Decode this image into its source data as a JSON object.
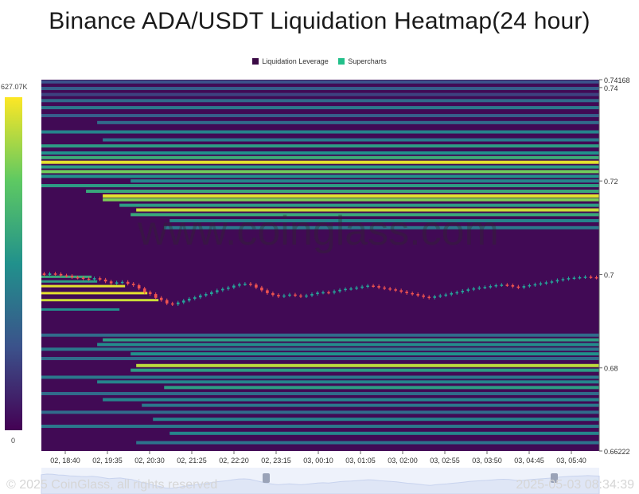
{
  "title": "Binance ADA/USDT Liquidation Heatmap(24 hour)",
  "legend": [
    {
      "label": "Liquidation Leverage",
      "color": "#3b0a45"
    },
    {
      "label": "Supercharts",
      "color": "#22c08a"
    }
  ],
  "watermark": "www.coinglass.com",
  "footer": {
    "copyright": "© 2025 CoinGlass, all rights reserved",
    "timestamp": "2025-05-03 08:34:39"
  },
  "chart_data": {
    "type": "heatmap",
    "title": "Binance ADA/USDT Liquidation Heatmap(24 hour)",
    "colorbar": {
      "max_label": "627.07K",
      "min_label": "0",
      "max": 627070,
      "min": 0,
      "colors": [
        "#440154",
        "#3b528b",
        "#21918c",
        "#5ec962",
        "#fde725"
      ]
    },
    "x_ticks": [
      "02, 18:40",
      "02, 19:35",
      "02, 20:30",
      "02, 21:25",
      "02, 22:20",
      "02, 23:15",
      "03, 00:10",
      "03, 01:05",
      "03, 02:00",
      "03, 02:55",
      "03, 03:50",
      "03, 04:45",
      "03, 05:40"
    ],
    "y_ticks": [
      {
        "label": "0.74168",
        "value": 0.74168
      },
      {
        "label": "0.74",
        "value": 0.74
      },
      {
        "label": "0.72",
        "value": 0.72
      },
      {
        "label": "0.7",
        "value": 0.7
      },
      {
        "label": "0.68",
        "value": 0.68
      },
      {
        "label": "0.66222",
        "value": 0.66222
      }
    ],
    "ylim": [
      0.66222,
      0.74168
    ],
    "price_series": {
      "name": "ADA/USDT",
      "up_color": "#26a69a",
      "down_color": "#ef5350",
      "close": [
        0.6999,
        0.7002,
        0.7001,
        0.6998,
        0.6997,
        0.6994,
        0.6993,
        0.6991,
        0.699,
        0.6992,
        0.6989,
        0.6985,
        0.6981,
        0.6983,
        0.6984,
        0.698,
        0.6977,
        0.697,
        0.6962,
        0.6958,
        0.695,
        0.6945,
        0.6938,
        0.6936,
        0.694,
        0.6944,
        0.6948,
        0.6951,
        0.6955,
        0.6958,
        0.6962,
        0.6966,
        0.6969,
        0.6972,
        0.6976,
        0.6979,
        0.698,
        0.6978,
        0.6972,
        0.6966,
        0.696,
        0.6956,
        0.6953,
        0.6955,
        0.6957,
        0.6955,
        0.6953,
        0.6955,
        0.6958,
        0.6961,
        0.6962,
        0.6961,
        0.6964,
        0.6967,
        0.6969,
        0.697,
        0.6972,
        0.6974,
        0.6976,
        0.6975,
        0.6972,
        0.697,
        0.6968,
        0.6966,
        0.6963,
        0.696,
        0.6958,
        0.6955,
        0.6952,
        0.695,
        0.6953,
        0.6955,
        0.6957,
        0.696,
        0.6962,
        0.6965,
        0.6968,
        0.697,
        0.6972,
        0.6973,
        0.6975,
        0.6977,
        0.6978,
        0.6977,
        0.6974,
        0.6972,
        0.6975,
        0.6977,
        0.6979,
        0.6981,
        0.6983,
        0.6985,
        0.6988,
        0.699,
        0.6992,
        0.6993,
        0.6994,
        0.6995,
        0.6994,
        0.6993
      ]
    },
    "liquidation_bands": [
      {
        "price": 0.7412,
        "start": 0.0,
        "intensity": 0.25
      },
      {
        "price": 0.7398,
        "start": 0.0,
        "intensity": 0.3
      },
      {
        "price": 0.7385,
        "start": 0.0,
        "intensity": 0.2
      },
      {
        "price": 0.7372,
        "start": 0.0,
        "intensity": 0.35
      },
      {
        "price": 0.7357,
        "start": 0.0,
        "intensity": 0.4
      },
      {
        "price": 0.734,
        "start": 0.0,
        "intensity": 0.3
      },
      {
        "price": 0.7325,
        "start": 0.1,
        "intensity": 0.35
      },
      {
        "price": 0.7305,
        "start": 0.0,
        "intensity": 0.45
      },
      {
        "price": 0.7288,
        "start": 0.11,
        "intensity": 0.4
      },
      {
        "price": 0.7275,
        "start": 0.0,
        "intensity": 0.55
      },
      {
        "price": 0.726,
        "start": 0.0,
        "intensity": 0.5
      },
      {
        "price": 0.725,
        "start": 0.0,
        "intensity": 0.62
      },
      {
        "price": 0.724,
        "start": 0.0,
        "intensity": 0.96
      },
      {
        "price": 0.723,
        "start": 0.0,
        "intensity": 0.55
      },
      {
        "price": 0.722,
        "start": 0.0,
        "intensity": 0.78
      },
      {
        "price": 0.721,
        "start": 0.0,
        "intensity": 0.5
      },
      {
        "price": 0.72,
        "start": 0.16,
        "intensity": 0.45
      },
      {
        "price": 0.719,
        "start": 0.0,
        "intensity": 0.55
      },
      {
        "price": 0.7178,
        "start": 0.08,
        "intensity": 0.6
      },
      {
        "price": 0.7168,
        "start": 0.11,
        "intensity": 0.96
      },
      {
        "price": 0.716,
        "start": 0.11,
        "intensity": 0.8
      },
      {
        "price": 0.7148,
        "start": 0.14,
        "intensity": 0.55
      },
      {
        "price": 0.7138,
        "start": 0.17,
        "intensity": 0.92
      },
      {
        "price": 0.7128,
        "start": 0.16,
        "intensity": 0.6
      },
      {
        "price": 0.7115,
        "start": 0.23,
        "intensity": 0.45
      },
      {
        "price": 0.71,
        "start": 0.22,
        "intensity": 0.4
      },
      {
        "price": 0.687,
        "start": 0.0,
        "intensity": 0.35
      },
      {
        "price": 0.686,
        "start": 0.11,
        "intensity": 0.55
      },
      {
        "price": 0.685,
        "start": 0.1,
        "intensity": 0.48
      },
      {
        "price": 0.684,
        "start": 0.0,
        "intensity": 0.4
      },
      {
        "price": 0.683,
        "start": 0.16,
        "intensity": 0.5
      },
      {
        "price": 0.682,
        "start": 0.0,
        "intensity": 0.35
      },
      {
        "price": 0.6805,
        "start": 0.17,
        "intensity": 0.9
      },
      {
        "price": 0.6795,
        "start": 0.16,
        "intensity": 0.55
      },
      {
        "price": 0.678,
        "start": 0.0,
        "intensity": 0.4
      },
      {
        "price": 0.677,
        "start": 0.1,
        "intensity": 0.45
      },
      {
        "price": 0.6758,
        "start": 0.22,
        "intensity": 0.55
      },
      {
        "price": 0.6745,
        "start": 0.0,
        "intensity": 0.35
      },
      {
        "price": 0.6732,
        "start": 0.11,
        "intensity": 0.45
      },
      {
        "price": 0.672,
        "start": 0.18,
        "intensity": 0.4
      },
      {
        "price": 0.6705,
        "start": 0.0,
        "intensity": 0.35
      },
      {
        "price": 0.669,
        "start": 0.2,
        "intensity": 0.45
      },
      {
        "price": 0.6675,
        "start": 0.0,
        "intensity": 0.4
      },
      {
        "price": 0.666,
        "start": 0.23,
        "intensity": 0.45
      },
      {
        "price": 0.664,
        "start": 0.17,
        "intensity": 0.38
      }
    ],
    "left_bands": [
      {
        "price": 0.6995,
        "end": 0.09,
        "intensity": 0.6
      },
      {
        "price": 0.6985,
        "end": 0.1,
        "intensity": 0.55
      },
      {
        "price": 0.6975,
        "end": 0.15,
        "intensity": 0.96
      },
      {
        "price": 0.696,
        "end": 0.19,
        "intensity": 0.96
      },
      {
        "price": 0.6945,
        "end": 0.21,
        "intensity": 0.92
      },
      {
        "price": 0.6925,
        "end": 0.14,
        "intensity": 0.5
      }
    ]
  }
}
